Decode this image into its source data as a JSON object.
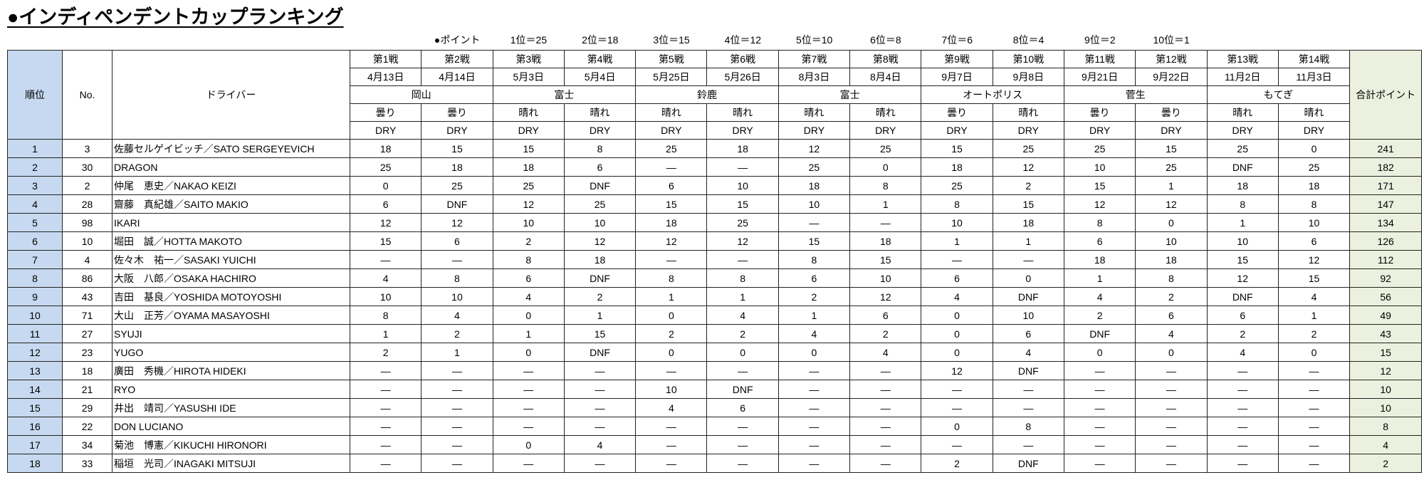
{
  "title": "●インディペンデントカップランキング",
  "points_legend": [
    "●ポイント",
    "1位＝25",
    "2位＝18",
    "3位＝15",
    "4位＝12",
    "5位＝10",
    "6位＝8",
    "7位＝6",
    "8位＝4",
    "9位＝2",
    "10位＝1"
  ],
  "headers": {
    "rank": "順位",
    "no": "No.",
    "driver": "ドライバー",
    "total": "合計ポイント"
  },
  "rounds": [
    {
      "label": "第1戦",
      "date": "4月13日",
      "weather": "曇り",
      "track": "DRY"
    },
    {
      "label": "第2戦",
      "date": "4月14日",
      "weather": "曇り",
      "track": "DRY"
    },
    {
      "label": "第3戦",
      "date": "5月3日",
      "weather": "晴れ",
      "track": "DRY"
    },
    {
      "label": "第4戦",
      "date": "5月4日",
      "weather": "晴れ",
      "track": "DRY"
    },
    {
      "label": "第5戦",
      "date": "5月25日",
      "weather": "晴れ",
      "track": "DRY"
    },
    {
      "label": "第6戦",
      "date": "5月26日",
      "weather": "晴れ",
      "track": "DRY"
    },
    {
      "label": "第7戦",
      "date": "8月3日",
      "weather": "晴れ",
      "track": "DRY"
    },
    {
      "label": "第8戦",
      "date": "8月4日",
      "weather": "晴れ",
      "track": "DRY"
    },
    {
      "label": "第9戦",
      "date": "9月7日",
      "weather": "曇り",
      "track": "DRY"
    },
    {
      "label": "第10戦",
      "date": "9月8日",
      "weather": "晴れ",
      "track": "DRY"
    },
    {
      "label": "第11戦",
      "date": "9月21日",
      "weather": "曇り",
      "track": "DRY"
    },
    {
      "label": "第12戦",
      "date": "9月22日",
      "weather": "曇り",
      "track": "DRY"
    },
    {
      "label": "第13戦",
      "date": "11月2日",
      "weather": "晴れ",
      "track": "DRY"
    },
    {
      "label": "第14戦",
      "date": "11月3日",
      "weather": "晴れ",
      "track": "DRY"
    }
  ],
  "venues": [
    "岡山",
    "富士",
    "鈴鹿",
    "富士",
    "オートポリス",
    "菅生",
    "もてぎ"
  ],
  "rows": [
    {
      "rank": "1",
      "no": "3",
      "driver": "佐藤セルゲイビッチ／SATO SERGEYEVICH",
      "results": [
        "18",
        "15",
        "15",
        "8",
        "25",
        "18",
        "12",
        "25",
        "15",
        "25",
        "25",
        "15",
        "25",
        "0"
      ],
      "total": "241"
    },
    {
      "rank": "2",
      "no": "30",
      "driver": "DRAGON",
      "results": [
        "25",
        "18",
        "18",
        "6",
        "—",
        "—",
        "25",
        "0",
        "18",
        "12",
        "10",
        "25",
        "DNF",
        "25"
      ],
      "total": "182"
    },
    {
      "rank": "3",
      "no": "2",
      "driver": "仲尾　恵史／NAKAO KEIZI",
      "results": [
        "0",
        "25",
        "25",
        "DNF",
        "6",
        "10",
        "18",
        "8",
        "25",
        "2",
        "15",
        "1",
        "18",
        "18"
      ],
      "total": "171"
    },
    {
      "rank": "4",
      "no": "28",
      "driver": "齋藤　真紀雄／SAITO MAKIO",
      "results": [
        "6",
        "DNF",
        "12",
        "25",
        "15",
        "15",
        "10",
        "1",
        "8",
        "15",
        "12",
        "12",
        "8",
        "8"
      ],
      "total": "147"
    },
    {
      "rank": "5",
      "no": "98",
      "driver": "IKARI",
      "results": [
        "12",
        "12",
        "10",
        "10",
        "18",
        "25",
        "—",
        "—",
        "10",
        "18",
        "8",
        "0",
        "1",
        "10"
      ],
      "total": "134"
    },
    {
      "rank": "6",
      "no": "10",
      "driver": "堀田　誠／HOTTA MAKOTO",
      "results": [
        "15",
        "6",
        "2",
        "12",
        "12",
        "12",
        "15",
        "18",
        "1",
        "1",
        "6",
        "10",
        "10",
        "6"
      ],
      "total": "126"
    },
    {
      "rank": "7",
      "no": "4",
      "driver": "佐々木　祐一／SASAKI YUICHI",
      "results": [
        "—",
        "—",
        "8",
        "18",
        "—",
        "—",
        "8",
        "15",
        "—",
        "—",
        "18",
        "18",
        "15",
        "12"
      ],
      "total": "112"
    },
    {
      "rank": "8",
      "no": "86",
      "driver": "大阪　八郎／OSAKA HACHIRO",
      "results": [
        "4",
        "8",
        "6",
        "DNF",
        "8",
        "8",
        "6",
        "10",
        "6",
        "0",
        "1",
        "8",
        "12",
        "15"
      ],
      "total": "92"
    },
    {
      "rank": "9",
      "no": "43",
      "driver": "吉田　基良／YOSHIDA MOTOYOSHI",
      "results": [
        "10",
        "10",
        "4",
        "2",
        "1",
        "1",
        "2",
        "12",
        "4",
        "DNF",
        "4",
        "2",
        "DNF",
        "4"
      ],
      "total": "56"
    },
    {
      "rank": "10",
      "no": "71",
      "driver": "大山　正芳／OYAMA MASAYOSHI",
      "results": [
        "8",
        "4",
        "0",
        "1",
        "0",
        "4",
        "1",
        "6",
        "0",
        "10",
        "2",
        "6",
        "6",
        "1"
      ],
      "total": "49"
    },
    {
      "rank": "11",
      "no": "27",
      "driver": "SYUJI",
      "results": [
        "1",
        "2",
        "1",
        "15",
        "2",
        "2",
        "4",
        "2",
        "0",
        "6",
        "DNF",
        "4",
        "2",
        "2"
      ],
      "total": "43"
    },
    {
      "rank": "12",
      "no": "23",
      "driver": "YUGO",
      "results": [
        "2",
        "1",
        "0",
        "DNF",
        "0",
        "0",
        "0",
        "4",
        "0",
        "4",
        "0",
        "0",
        "4",
        "0"
      ],
      "total": "15"
    },
    {
      "rank": "13",
      "no": "18",
      "driver": "廣田　秀機／HIROTA HIDEKI",
      "results": [
        "—",
        "—",
        "—",
        "—",
        "—",
        "—",
        "—",
        "—",
        "12",
        "DNF",
        "—",
        "—",
        "—",
        "—"
      ],
      "total": "12"
    },
    {
      "rank": "14",
      "no": "21",
      "driver": "RYO",
      "results": [
        "—",
        "—",
        "—",
        "—",
        "10",
        "DNF",
        "—",
        "—",
        "—",
        "—",
        "—",
        "—",
        "—",
        "—"
      ],
      "total": "10"
    },
    {
      "rank": "15",
      "no": "29",
      "driver": "井出　靖司／YASUSHI IDE",
      "results": [
        "—",
        "—",
        "—",
        "—",
        "4",
        "6",
        "—",
        "—",
        "—",
        "—",
        "—",
        "—",
        "—",
        "—"
      ],
      "total": "10"
    },
    {
      "rank": "16",
      "no": "22",
      "driver": "DON LUCIANO",
      "results": [
        "—",
        "—",
        "—",
        "—",
        "—",
        "—",
        "—",
        "—",
        "0",
        "8",
        "—",
        "—",
        "—",
        "—"
      ],
      "total": "8"
    },
    {
      "rank": "17",
      "no": "34",
      "driver": "菊池　博憲／KIKUCHI HIRONORI",
      "results": [
        "—",
        "—",
        "0",
        "4",
        "—",
        "—",
        "—",
        "—",
        "—",
        "—",
        "—",
        "—",
        "—",
        "—"
      ],
      "total": "4"
    },
    {
      "rank": "18",
      "no": "33",
      "driver": "稲垣　光司／INAGAKI MITSUJI",
      "results": [
        "—",
        "—",
        "—",
        "—",
        "—",
        "—",
        "—",
        "—",
        "2",
        "DNF",
        "—",
        "—",
        "—",
        "—"
      ],
      "total": "2"
    }
  ],
  "colors": {
    "rank_column": "#c6d9f0",
    "total_column": "#ebf1de"
  }
}
